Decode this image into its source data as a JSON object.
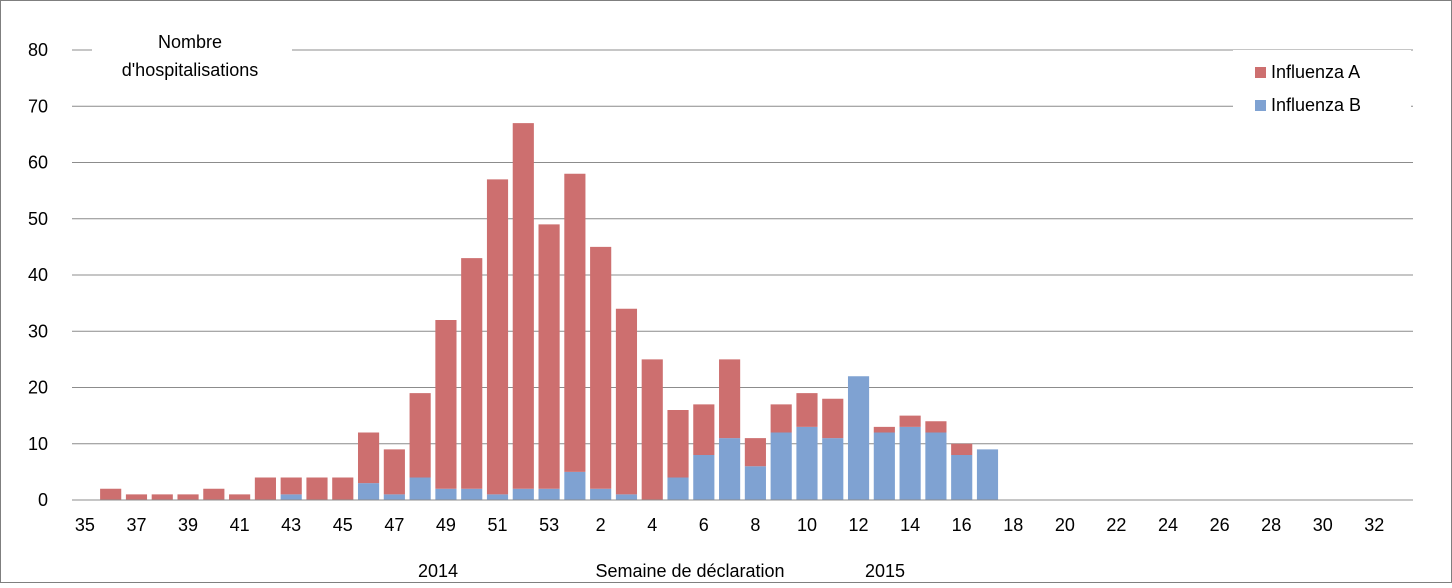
{
  "chart_data": {
    "type": "bar",
    "stacked": true,
    "title": "",
    "ylabel": "Nombre d'hospitalisations",
    "ylabel_lines": [
      "Nombre",
      "d'hospitalisations"
    ],
    "xlabel": "Semaine de déclaration",
    "year_labels": [
      "2014",
      "2015"
    ],
    "ylim": [
      0,
      80
    ],
    "yticks": [
      0,
      10,
      20,
      30,
      40,
      50,
      60,
      70,
      80
    ],
    "grid": true,
    "legend_position": "top-right",
    "categories": [
      "35",
      "36",
      "37",
      "38",
      "39",
      "40",
      "41",
      "42",
      "43",
      "44",
      "45",
      "46",
      "47",
      "48",
      "49",
      "50",
      "51",
      "52",
      "53",
      "1",
      "2",
      "3",
      "4",
      "5",
      "6",
      "7",
      "8",
      "9",
      "10",
      "11",
      "12",
      "13",
      "14",
      "15",
      "16",
      "17",
      "18",
      "19",
      "20",
      "21",
      "22",
      "23",
      "24",
      "25",
      "26",
      "27",
      "28",
      "29",
      "30",
      "31",
      "32",
      "33"
    ],
    "tick_labels": [
      "35",
      "",
      "37",
      "",
      "39",
      "",
      "41",
      "",
      "43",
      "",
      "45",
      "",
      "47",
      "",
      "49",
      "",
      "51",
      "",
      "53",
      "",
      "2",
      "",
      "4",
      "",
      "6",
      "",
      "8",
      "",
      "10",
      "",
      "12",
      "",
      "14",
      "",
      "16",
      "",
      "18",
      "",
      "20",
      "",
      "22",
      "",
      "24",
      "",
      "26",
      "",
      "28",
      "",
      "30",
      "",
      "32",
      ""
    ],
    "series": [
      {
        "name": "Influenza B",
        "color": "#7fa2d2",
        "values": [
          0,
          0,
          0,
          0,
          0,
          0,
          0,
          0,
          1,
          0,
          0,
          3,
          1,
          4,
          2,
          2,
          1,
          2,
          2,
          5,
          2,
          1,
          0,
          4,
          8,
          11,
          6,
          12,
          13,
          11,
          22,
          12,
          13,
          12,
          8,
          9,
          0,
          0,
          0,
          0,
          0,
          0,
          0,
          0,
          0,
          0,
          0,
          0,
          0,
          0,
          0,
          0
        ]
      },
      {
        "name": "Influenza A",
        "color": "#cd6f6f",
        "values": [
          0,
          2,
          1,
          1,
          1,
          2,
          1,
          4,
          3,
          4,
          4,
          9,
          8,
          15,
          30,
          41,
          56,
          65,
          47,
          53,
          43,
          33,
          25,
          12,
          9,
          14,
          5,
          5,
          6,
          7,
          0,
          1,
          2,
          2,
          2,
          0,
          0,
          0,
          0,
          0,
          0,
          0,
          0,
          0,
          0,
          0,
          0,
          0,
          0,
          0,
          0,
          0
        ]
      }
    ]
  }
}
